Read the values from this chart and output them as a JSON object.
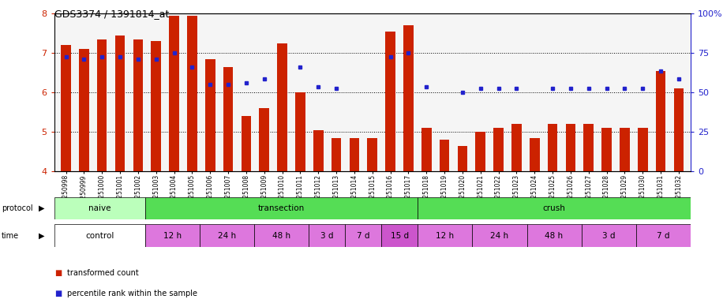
{
  "title": "GDS3374 / 1391814_at",
  "samples": [
    "GSM250998",
    "GSM250999",
    "GSM251000",
    "GSM251001",
    "GSM251002",
    "GSM251003",
    "GSM251004",
    "GSM251005",
    "GSM251006",
    "GSM251007",
    "GSM251008",
    "GSM251009",
    "GSM251010",
    "GSM251011",
    "GSM251012",
    "GSM251013",
    "GSM251014",
    "GSM251015",
    "GSM251016",
    "GSM251017",
    "GSM251018",
    "GSM251019",
    "GSM251020",
    "GSM251021",
    "GSM251022",
    "GSM251023",
    "GSM251024",
    "GSM251025",
    "GSM251026",
    "GSM251027",
    "GSM251028",
    "GSM251029",
    "GSM251030",
    "GSM251031",
    "GSM251032"
  ],
  "bar_values": [
    7.2,
    7.1,
    7.35,
    7.45,
    7.35,
    7.3,
    7.95,
    7.95,
    6.85,
    6.65,
    5.4,
    5.6,
    7.25,
    6.0,
    5.05,
    4.85,
    4.85,
    4.85,
    7.55,
    7.7,
    5.1,
    4.8,
    4.65,
    5.0,
    5.1,
    5.2,
    4.85,
    5.2,
    5.2,
    5.2,
    5.1,
    5.1,
    5.1,
    6.55,
    6.1
  ],
  "blue_values": [
    6.9,
    6.85,
    6.9,
    6.9,
    6.85,
    6.85,
    7.0,
    6.65,
    6.2,
    6.2,
    6.25,
    6.35,
    null,
    6.65,
    6.15,
    6.1,
    null,
    null,
    6.9,
    7.0,
    6.15,
    null,
    6.0,
    6.1,
    6.1,
    6.1,
    null,
    6.1,
    6.1,
    6.1,
    6.1,
    6.1,
    6.1,
    6.55,
    6.35
  ],
  "ylim": [
    4,
    8
  ],
  "yticks": [
    4,
    5,
    6,
    7,
    8
  ],
  "yticks_right": [
    "0",
    "25",
    "50",
    "75",
    "100%"
  ],
  "bar_color": "#cc2200",
  "blue_color": "#2222cc",
  "proto_regions": [
    {
      "label": "naive",
      "start": 0,
      "end": 5,
      "color": "#bbffbb"
    },
    {
      "label": "transection",
      "start": 5,
      "end": 20,
      "color": "#55dd55"
    },
    {
      "label": "crush",
      "start": 20,
      "end": 35,
      "color": "#55dd55"
    }
  ],
  "time_regions": [
    {
      "label": "control",
      "start": 0,
      "end": 5,
      "color": "#ffffff"
    },
    {
      "label": "12 h",
      "start": 5,
      "end": 8,
      "color": "#dd77dd"
    },
    {
      "label": "24 h",
      "start": 8,
      "end": 11,
      "color": "#dd77dd"
    },
    {
      "label": "48 h",
      "start": 11,
      "end": 14,
      "color": "#dd77dd"
    },
    {
      "label": "3 d",
      "start": 14,
      "end": 16,
      "color": "#dd77dd"
    },
    {
      "label": "7 d",
      "start": 16,
      "end": 18,
      "color": "#dd77dd"
    },
    {
      "label": "15 d",
      "start": 18,
      "end": 20,
      "color": "#cc55cc"
    },
    {
      "label": "12 h",
      "start": 20,
      "end": 23,
      "color": "#dd77dd"
    },
    {
      "label": "24 h",
      "start": 23,
      "end": 26,
      "color": "#dd77dd"
    },
    {
      "label": "48 h",
      "start": 26,
      "end": 29,
      "color": "#dd77dd"
    },
    {
      "label": "3 d",
      "start": 29,
      "end": 32,
      "color": "#dd77dd"
    },
    {
      "label": "7 d",
      "start": 32,
      "end": 35,
      "color": "#dd77dd"
    }
  ],
  "legend_red": "transformed count",
  "legend_blue": "percentile rank within the sample"
}
